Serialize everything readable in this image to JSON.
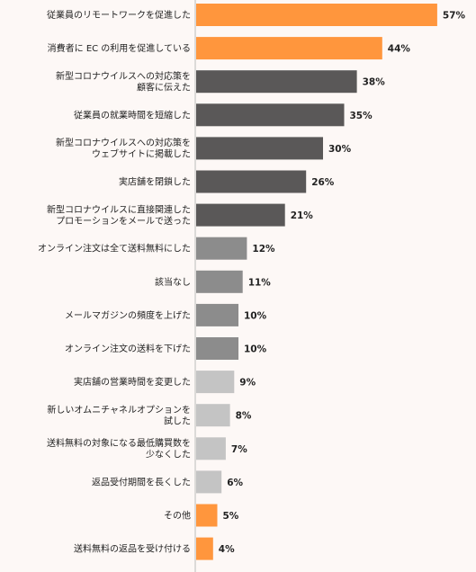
{
  "chart_data": {
    "type": "bar",
    "orientation": "horizontal",
    "title": "",
    "xlabel": "",
    "ylabel": "",
    "xlim": [
      0,
      60
    ],
    "grid": false,
    "legend": "none",
    "value_suffix": "%",
    "categories": [
      [
        "従業員のリモートワークを促進した"
      ],
      [
        "消費者に EC の利用を促進している"
      ],
      [
        "新型コロナウイルスへの対応策を",
        "顧客に伝えた"
      ],
      [
        "従業員の就業時間を短縮した"
      ],
      [
        "新型コロナウイルスへの対応策を",
        "ウェブサイトに掲載した"
      ],
      [
        "実店舗を閉鎖した"
      ],
      [
        "新型コロナウイルスに直接関連した",
        "プロモーションをメールで送った"
      ],
      [
        "オンライン注文は全て送料無料にした"
      ],
      [
        "該当なし"
      ],
      [
        "メールマガジンの頻度を上げた"
      ],
      [
        "オンライン注文の送料を下げた"
      ],
      [
        "実店舗の営業時間を変更した"
      ],
      [
        "新しいオムニチャネルオプションを",
        "試した"
      ],
      [
        "送料無料の対象になる最低購買数を",
        "少なくした"
      ],
      [
        "返品受付期間を長くした"
      ],
      [
        "その他"
      ],
      [
        "送料無料の返品を受け付ける"
      ]
    ],
    "values": [
      57,
      44,
      38,
      35,
      30,
      26,
      21,
      12,
      11,
      10,
      10,
      9,
      8,
      7,
      6,
      5,
      4
    ],
    "bar_colors": [
      "#ff963d",
      "#ff963d",
      "#5a5858",
      "#5a5858",
      "#5a5858",
      "#5a5858",
      "#5a5858",
      "#8c8c8c",
      "#8c8c8c",
      "#8c8c8c",
      "#8c8c8c",
      "#c4c4c4",
      "#c4c4c4",
      "#c4c4c4",
      "#c4c4c4",
      "#ff963d",
      "#ff963d"
    ],
    "axis_line_color": "#bbbbbb",
    "background_color": "#fdf8f6"
  }
}
